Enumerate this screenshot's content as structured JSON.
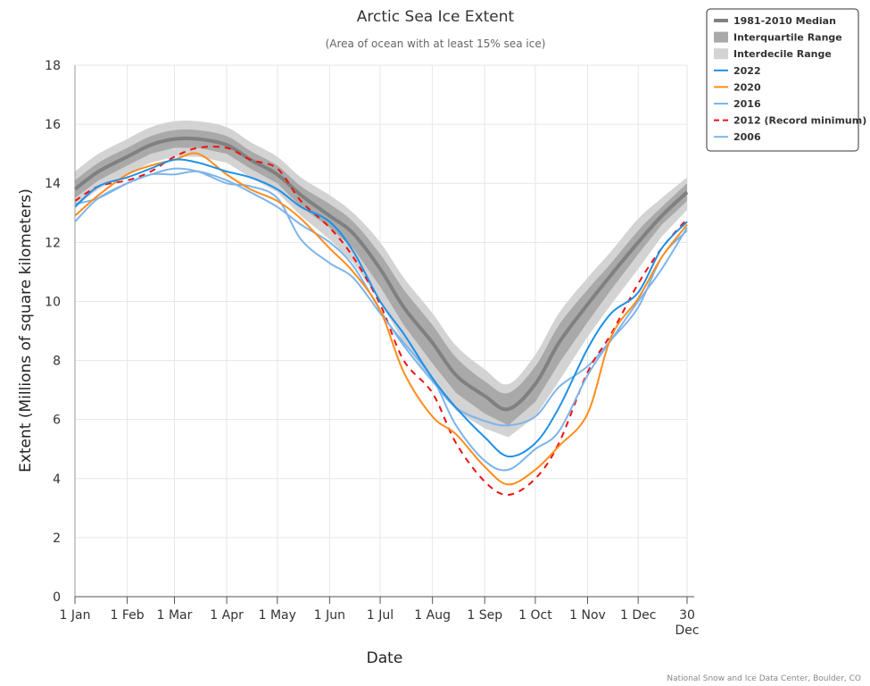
{
  "chart_data": {
    "type": "line",
    "title": "Arctic Sea Ice Extent",
    "subtitle": "(Area of ocean with at least 15% sea ice)",
    "xlabel": "Date",
    "ylabel": "Extent (Millions of square kilometers)",
    "ylim": [
      0,
      18
    ],
    "yticks": [
      0,
      2,
      4,
      6,
      8,
      10,
      12,
      14,
      16,
      18
    ],
    "xticks": [
      {
        "date": "01-01",
        "label": "1 Jan"
      },
      {
        "date": "02-01",
        "label": "1 Feb"
      },
      {
        "date": "03-01",
        "label": "1 Mar"
      },
      {
        "date": "04-01",
        "label": "1 Apr"
      },
      {
        "date": "05-01",
        "label": "1 May"
      },
      {
        "date": "06-01",
        "label": "1 Jun"
      },
      {
        "date": "07-01",
        "label": "1 Jul"
      },
      {
        "date": "08-01",
        "label": "1 Aug"
      },
      {
        "date": "09-01",
        "label": "1 Sep"
      },
      {
        "date": "10-01",
        "label": "1 Oct"
      },
      {
        "date": "11-01",
        "label": "1 Nov"
      },
      {
        "date": "12-01",
        "label": "1 Dec"
      },
      {
        "date": "12-30",
        "label": "30",
        "label2": "Dec"
      }
    ],
    "grid": true,
    "legend_position": "top-right",
    "x": [
      "01-01",
      "01-15",
      "02-01",
      "02-15",
      "03-01",
      "03-15",
      "04-01",
      "04-15",
      "05-01",
      "05-15",
      "06-01",
      "06-15",
      "07-01",
      "07-15",
      "08-01",
      "08-15",
      "09-01",
      "09-15",
      "10-01",
      "10-15",
      "11-01",
      "11-15",
      "12-01",
      "12-15",
      "12-30"
    ],
    "median": {
      "name": "1981-2010 Median",
      "color": "#808080",
      "values": [
        13.8,
        14.4,
        14.9,
        15.3,
        15.5,
        15.5,
        15.3,
        14.8,
        14.3,
        13.6,
        12.9,
        12.3,
        11.1,
        9.8,
        8.6,
        7.5,
        6.8,
        6.35,
        7.2,
        8.6,
        9.9,
        10.9,
        12.0,
        12.9,
        13.7
      ]
    },
    "interquartile": {
      "name": "Interquartile Range",
      "color": "#a9a9a9",
      "low": [
        13.5,
        14.1,
        14.6,
        15.0,
        15.2,
        15.2,
        15.0,
        14.5,
        14.0,
        13.2,
        12.5,
        11.8,
        10.5,
        9.2,
        7.9,
        6.9,
        6.2,
        5.8,
        6.6,
        7.9,
        9.3,
        10.4,
        11.6,
        12.6,
        13.4
      ],
      "high": [
        14.1,
        14.7,
        15.2,
        15.6,
        15.8,
        15.8,
        15.6,
        15.1,
        14.6,
        13.9,
        13.3,
        12.7,
        11.6,
        10.4,
        9.2,
        8.1,
        7.3,
        6.9,
        7.8,
        9.2,
        10.4,
        11.3,
        12.4,
        13.2,
        14.0
      ]
    },
    "interdecile": {
      "name": "Interdecile Range",
      "color": "#d3d3d3",
      "low": [
        13.2,
        13.8,
        14.3,
        14.7,
        14.9,
        14.9,
        14.7,
        14.2,
        13.7,
        12.9,
        12.1,
        11.3,
        10.0,
        8.6,
        7.3,
        6.3,
        5.7,
        5.4,
        6.1,
        7.3,
        8.8,
        9.9,
        11.1,
        12.2,
        13.1
      ],
      "high": [
        14.4,
        15.0,
        15.5,
        15.9,
        16.1,
        16.1,
        15.9,
        15.4,
        14.9,
        14.2,
        13.6,
        13.0,
        12.0,
        10.8,
        9.6,
        8.5,
        7.7,
        7.2,
        8.2,
        9.6,
        10.8,
        11.7,
        12.8,
        13.5,
        14.2
      ]
    },
    "series": [
      {
        "name": "2022",
        "color": "#1e90e6",
        "dash": false,
        "values": [
          13.2,
          13.9,
          14.2,
          14.5,
          14.8,
          14.7,
          14.4,
          14.2,
          13.8,
          13.2,
          12.7,
          11.7,
          10.0,
          8.9,
          7.4,
          6.4,
          5.4,
          4.75,
          5.2,
          6.4,
          8.4,
          9.6,
          10.3,
          11.8,
          12.7
        ]
      },
      {
        "name": "2020",
        "color": "#ff8c1a",
        "dash": false,
        "values": [
          12.9,
          13.6,
          14.3,
          14.6,
          14.8,
          15.0,
          14.3,
          13.8,
          13.4,
          12.8,
          11.8,
          11.0,
          9.7,
          7.6,
          6.1,
          5.5,
          4.4,
          3.8,
          4.3,
          5.1,
          6.2,
          8.8,
          10.1,
          11.5,
          12.6
        ]
      },
      {
        "name": "2016",
        "color": "#7db4ec",
        "dash": false,
        "values": [
          13.3,
          13.5,
          14.0,
          14.3,
          14.5,
          14.4,
          14.0,
          13.9,
          13.5,
          12.1,
          11.3,
          10.8,
          9.6,
          8.6,
          7.4,
          5.8,
          4.6,
          4.3,
          5.0,
          5.6,
          7.5,
          8.7,
          10.0,
          11.1,
          12.5
        ]
      },
      {
        "name": "2012 (Record minimum)",
        "color": "#ee1111",
        "dash": true,
        "values": [
          13.4,
          13.9,
          14.1,
          14.4,
          14.9,
          15.2,
          15.2,
          14.8,
          14.5,
          13.4,
          12.5,
          11.5,
          9.9,
          8.0,
          6.9,
          5.2,
          3.9,
          3.45,
          4.0,
          5.2,
          7.6,
          8.9,
          10.6,
          11.8,
          12.8
        ]
      },
      {
        "name": "2006",
        "color": "#7db4ec",
        "dash": false,
        "values": [
          12.7,
          13.5,
          14.0,
          14.3,
          14.3,
          14.4,
          14.1,
          13.7,
          13.2,
          12.6,
          12.0,
          11.2,
          9.7,
          8.5,
          7.3,
          6.4,
          5.95,
          5.8,
          6.1,
          7.1,
          7.8,
          8.7,
          9.8,
          11.5,
          12.4
        ]
      }
    ],
    "credit": "National Snow and Ice Data Center, Boulder, CO"
  }
}
